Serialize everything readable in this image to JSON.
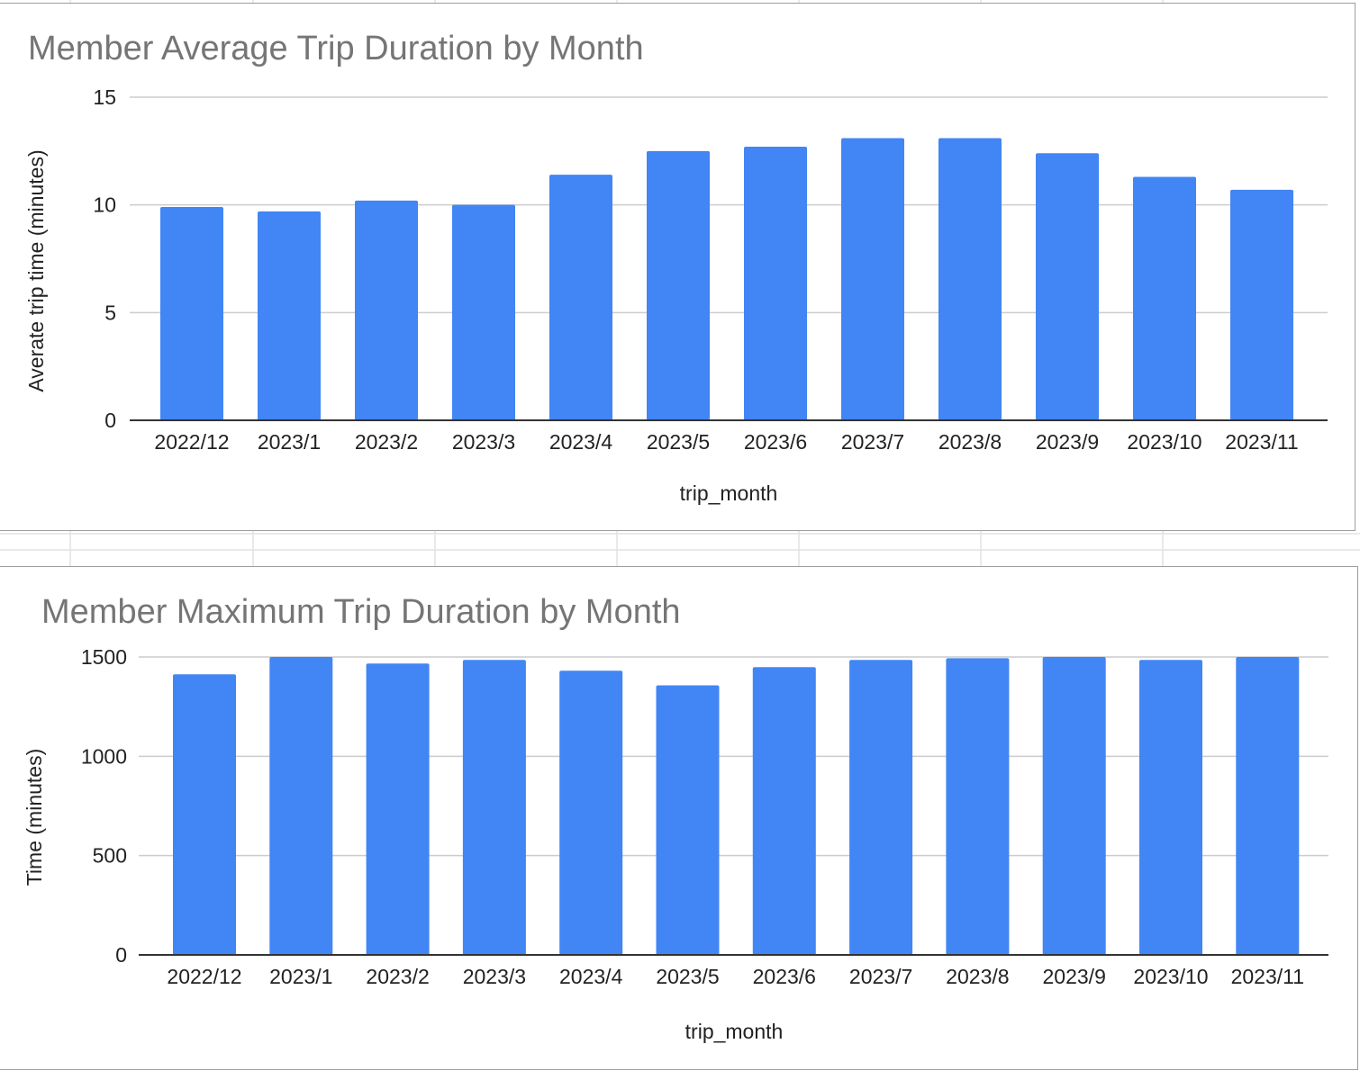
{
  "colors": {
    "bar": "#4285f4",
    "gridline": "#cccccc",
    "baseline": "#333333",
    "title": "#757575",
    "text": "#222222",
    "sheet_grid": "#e2e2e2"
  },
  "chart_data": [
    {
      "type": "bar",
      "title": "Member Average Trip Duration by Month",
      "xlabel": "trip_month",
      "ylabel": "Averate trip time (minutes)",
      "categories": [
        "2022/12",
        "2023/1",
        "2023/2",
        "2023/3",
        "2023/4",
        "2023/5",
        "2023/6",
        "2023/7",
        "2023/8",
        "2023/9",
        "2023/10",
        "2023/11"
      ],
      "values": [
        9.9,
        9.7,
        10.2,
        10.0,
        11.4,
        12.5,
        12.7,
        13.1,
        13.1,
        12.4,
        11.3,
        10.7
      ],
      "ylim": [
        0,
        15
      ],
      "yticks": [
        "0",
        "5",
        "10",
        "15"
      ],
      "grid": true,
      "legend": "none"
    },
    {
      "type": "bar",
      "title": "Member Maximum Trip Duration by Month",
      "xlabel": "trip_month",
      "ylabel": "Time (minutes)",
      "categories": [
        "2022/12",
        "2023/1",
        "2023/2",
        "2023/3",
        "2023/4",
        "2023/5",
        "2023/6",
        "2023/7",
        "2023/8",
        "2023/9",
        "2023/10",
        "2023/11"
      ],
      "values": [
        1413,
        1500,
        1467,
        1485,
        1431,
        1357,
        1449,
        1485,
        1494,
        1500,
        1485,
        1500
      ],
      "ylim": [
        0,
        1500
      ],
      "yticks": [
        "0",
        "500",
        "1000",
        "1500"
      ],
      "grid": true,
      "legend": "none"
    }
  ]
}
